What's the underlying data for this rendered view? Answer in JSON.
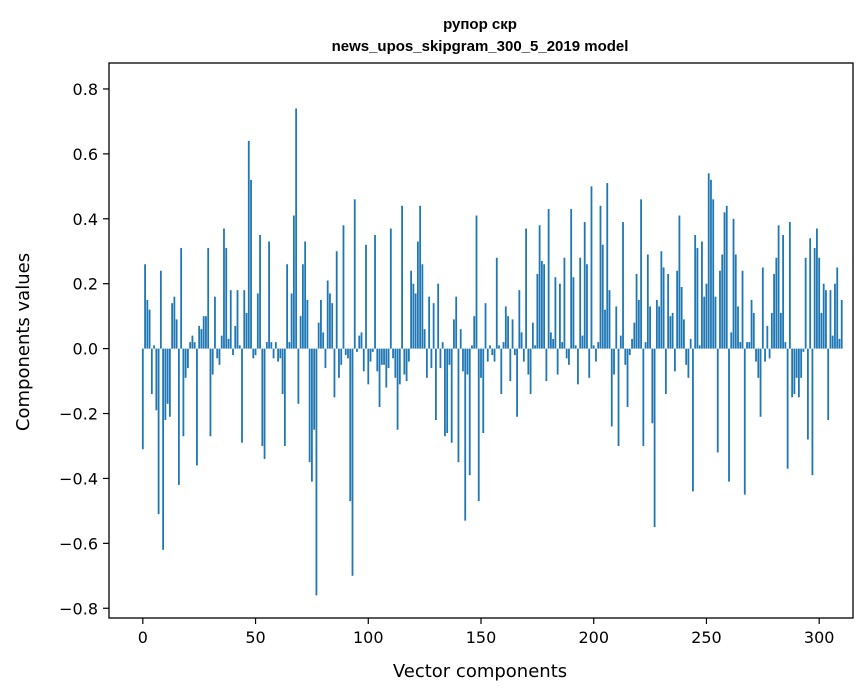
{
  "chart_data": {
    "type": "bar",
    "title_line1": "рупор скр",
    "title_line2": "news_upos_skipgram_300_5_2019 model",
    "xlabel": "Vector components",
    "ylabel": "Components values",
    "xlim": [
      -15,
      315
    ],
    "ylim": [
      -0.83,
      0.88
    ],
    "xticks": [
      0,
      50,
      100,
      150,
      200,
      250,
      300
    ],
    "xtick_labels": [
      "0",
      "50",
      "100",
      "150",
      "200",
      "250",
      "300"
    ],
    "yticks": [
      -0.8,
      -0.6,
      -0.4,
      -0.2,
      0.0,
      0.2,
      0.4,
      0.6,
      0.8
    ],
    "ytick_labels": [
      "−0.8",
      "−0.6",
      "−0.4",
      "−0.2",
      "0.0",
      "0.2",
      "0.4",
      "0.6",
      "0.8"
    ],
    "bar_color": "#1f77b4",
    "grid": false,
    "values": [
      -0.31,
      0.26,
      0.15,
      0.12,
      -0.14,
      0.01,
      -0.19,
      -0.51,
      0.24,
      -0.62,
      -0.22,
      -0.17,
      -0.21,
      0.14,
      0.16,
      0.09,
      -0.42,
      0.31,
      -0.27,
      -0.09,
      -0.06,
      0.02,
      0.04,
      0.02,
      -0.36,
      0.07,
      0.06,
      0.1,
      0.1,
      0.31,
      -0.27,
      -0.08,
      0.16,
      -0.03,
      -0.05,
      0.04,
      0.37,
      0.31,
      0.03,
      0.18,
      -0.02,
      0.07,
      0.18,
      0.01,
      -0.29,
      0.18,
      0.11,
      0.64,
      0.52,
      -0.03,
      -0.02,
      0.17,
      0.35,
      -0.3,
      -0.34,
      0.02,
      0.33,
      0.02,
      -0.03,
      0.02,
      -0.04,
      -0.03,
      -0.14,
      -0.3,
      0.26,
      0.02,
      0.17,
      0.41,
      0.74,
      -0.17,
      0.1,
      0.26,
      0.33,
      0.15,
      -0.35,
      -0.41,
      -0.25,
      -0.76,
      0.08,
      0.15,
      0.05,
      -0.06,
      0.21,
      0.17,
      0.14,
      -0.15,
      0.3,
      -0.09,
      -0.05,
      0.38,
      -0.02,
      -0.03,
      -0.47,
      -0.7,
      0.46,
      -0.01,
      0.04,
      0.05,
      -0.07,
      0.32,
      -0.11,
      -0.04,
      -0.01,
      0.35,
      -0.07,
      -0.18,
      -0.05,
      -0.05,
      -0.12,
      -0.06,
      0.37,
      -0.03,
      -0.09,
      -0.25,
      -0.11,
      0.44,
      -0.08,
      -0.1,
      -0.04,
      0.24,
      0.2,
      0.17,
      0.33,
      0.44,
      0.26,
      0.06,
      -0.09,
      0.16,
      -0.06,
      0.14,
      -0.22,
      0.2,
      -0.06,
      0.02,
      -0.27,
      -0.26,
      -0.05,
      -0.29,
      0.09,
      0.16,
      -0.35,
      0.06,
      -0.07,
      -0.53,
      -0.08,
      -0.39,
      0.01,
      0.1,
      0.41,
      -0.47,
      -0.09,
      -0.26,
      0.14,
      -0.04,
      0.01,
      -0.02,
      -0.04,
      0.28,
      0.01,
      -0.14,
      0.02,
      0.13,
      0.1,
      -0.1,
      0.09,
      -0.02,
      -0.21,
      0.18,
      0.05,
      -0.04,
      0.37,
      -0.08,
      -0.14,
      0.08,
      0.01,
      0.23,
      0.38,
      0.27,
      0.26,
      -0.1,
      0.43,
      0.05,
      0.03,
      0.22,
      -0.08,
      0.2,
      0.02,
      0.28,
      -0.03,
      -0.05,
      0.43,
      0.22,
      0.01,
      -0.11,
      0.28,
      0.04,
      0.39,
      0.26,
      -0.09,
      0.5,
      0.01,
      -0.04,
      0.02,
      0.44,
      0.32,
      0.12,
      0.51,
      0.18,
      -0.24,
      -0.08,
      0.13,
      -0.3,
      0.04,
      0.39,
      -0.05,
      -0.18,
      -0.02,
      0.03,
      0.08,
      0.23,
      0.15,
      0.46,
      -0.3,
      0.02,
      0.29,
      0.13,
      -0.23,
      -0.55,
      0.15,
      0.13,
      0.3,
      0.25,
      -0.14,
      0.23,
      0.1,
      0.11,
      -0.07,
      0.24,
      0.41,
      0.19,
      0.09,
      -0.05,
      -0.09,
      0.03,
      -0.44,
      0.35,
      0.31,
      0.01,
      0.33,
      0.16,
      0.2,
      0.54,
      0.52,
      0.46,
      0.16,
      -0.32,
      0.24,
      0.29,
      0.42,
      0.44,
      -0.41,
      0.05,
      0.4,
      0.29,
      0.13,
      0.02,
      0.24,
      -0.45,
      0.02,
      0.02,
      0.15,
      0.11,
      -0.04,
      -0.09,
      -0.21,
      0.25,
      -0.04,
      0.07,
      -0.03,
      0.11,
      0.23,
      0.28,
      0.38,
      0.11,
      0.35,
      0.02,
      -0.37,
      0.39,
      -0.15,
      -0.14,
      -0.09,
      -0.15,
      -0.09,
      -0.01,
      0.28,
      -0.28,
      0.34,
      -0.39,
      0.31,
      0.37,
      0.28,
      0.11,
      0.2,
      0.18,
      -0.22,
      0.18,
      0.04,
      0.2,
      0.25,
      0.03,
      0.15
    ]
  }
}
